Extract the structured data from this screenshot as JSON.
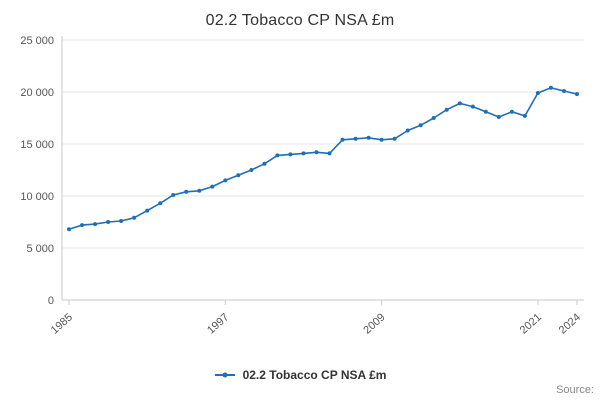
{
  "footer": {
    "source": "Source:"
  },
  "chart_data": {
    "type": "line",
    "title": "02.2 Tobacco CP NSA £m",
    "xlabel": "",
    "ylabel": "",
    "ylim": [
      0,
      25000
    ],
    "yticks": [
      0,
      5000,
      10000,
      15000,
      20000,
      25000
    ],
    "ytick_labels": [
      "0",
      "5 000",
      "10 000",
      "15 000",
      "20 000",
      "25 000"
    ],
    "xticks": [
      1985,
      1997,
      2009,
      2021,
      2024
    ],
    "grid": "horizontal",
    "legend_position": "bottom",
    "x": [
      1985,
      1986,
      1987,
      1988,
      1989,
      1990,
      1991,
      1992,
      1993,
      1994,
      1995,
      1996,
      1997,
      1998,
      1999,
      2000,
      2001,
      2002,
      2003,
      2004,
      2005,
      2006,
      2007,
      2008,
      2009,
      2010,
      2011,
      2012,
      2013,
      2014,
      2015,
      2016,
      2017,
      2018,
      2019,
      2020,
      2021,
      2022,
      2023,
      2024
    ],
    "series": [
      {
        "name": "02.2 Tobacco CP NSA £m",
        "color": "#1d70b8",
        "values": [
          6800,
          7200,
          7300,
          7500,
          7600,
          7900,
          8600,
          9300,
          10100,
          10400,
          10500,
          10900,
          11500,
          12000,
          12500,
          13100,
          13900,
          14000,
          14100,
          14200,
          14100,
          15400,
          15500,
          15600,
          15400,
          15500,
          16300,
          16800,
          17500,
          18300,
          18900,
          18600,
          18100,
          17600,
          18100,
          17700,
          19900,
          20400,
          20100,
          19800
        ]
      }
    ]
  }
}
